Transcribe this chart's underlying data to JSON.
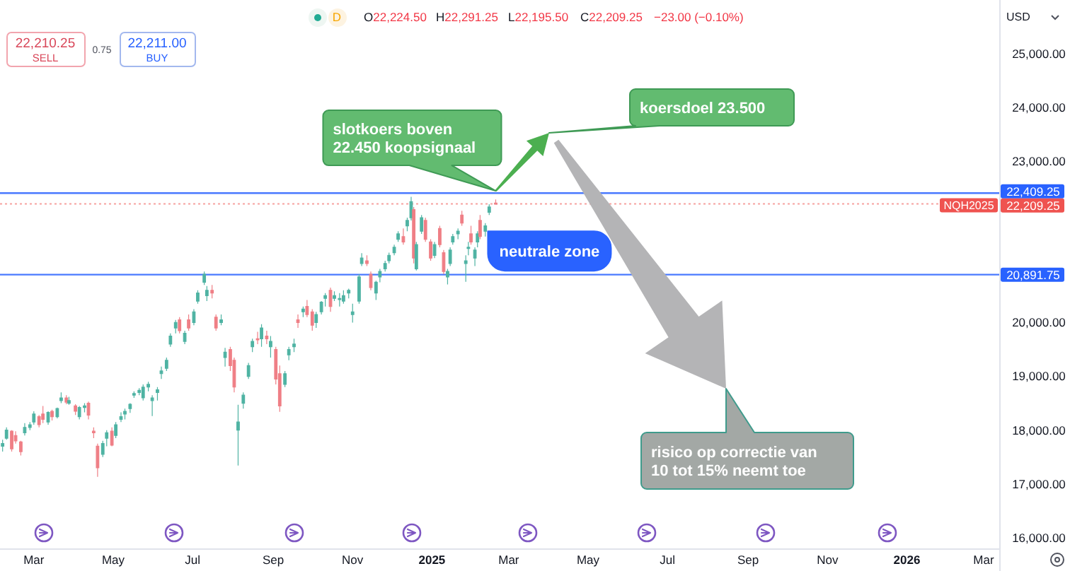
{
  "chart_data": {
    "type": "candlestick",
    "x": [
      "2024-02-06",
      "2024-02-09",
      "2024-02-13",
      "2024-02-16",
      "2024-02-20",
      "2024-02-23",
      "2024-02-27",
      "2024-03-01",
      "2024-03-05",
      "2024-03-08",
      "2024-03-12",
      "2024-03-15",
      "2024-03-19",
      "2024-03-22",
      "2024-03-26",
      "2024-03-28",
      "2024-04-02",
      "2024-04-05",
      "2024-04-09",
      "2024-04-12",
      "2024-04-16",
      "2024-04-19",
      "2024-04-23",
      "2024-04-26",
      "2024-04-30",
      "2024-05-03",
      "2024-05-07",
      "2024-05-10",
      "2024-05-14",
      "2024-05-17",
      "2024-05-21",
      "2024-05-24",
      "2024-05-28",
      "2024-05-31",
      "2024-06-04",
      "2024-06-07",
      "2024-06-11",
      "2024-06-14",
      "2024-06-18",
      "2024-06-21",
      "2024-06-25",
      "2024-06-28",
      "2024-07-02",
      "2024-07-05",
      "2024-07-10",
      "2024-07-12",
      "2024-07-16",
      "2024-07-19",
      "2024-07-23",
      "2024-07-26",
      "2024-07-30",
      "2024-08-02",
      "2024-08-05",
      "2024-08-09",
      "2024-08-13",
      "2024-08-16",
      "2024-08-20",
      "2024-08-23",
      "2024-08-27",
      "2024-08-30",
      "2024-09-03",
      "2024-09-06",
      "2024-09-10",
      "2024-09-13",
      "2024-09-17",
      "2024-09-20",
      "2024-09-24",
      "2024-09-27",
      "2024-10-01",
      "2024-10-04",
      "2024-10-08",
      "2024-10-11",
      "2024-10-15",
      "2024-10-18",
      "2024-10-22",
      "2024-10-25",
      "2024-10-29",
      "2024-11-01",
      "2024-11-06",
      "2024-11-08",
      "2024-11-12",
      "2024-11-15",
      "2024-11-19",
      "2024-11-22",
      "2024-11-26",
      "2024-11-29",
      "2024-12-03",
      "2024-12-06",
      "2024-12-10",
      "2024-12-13",
      "2024-12-16",
      "2024-12-18",
      "2024-12-20",
      "2024-12-24",
      "2024-12-27",
      "2024-12-31",
      "2025-01-03",
      "2025-01-07",
      "2025-01-10",
      "2025-01-13",
      "2025-01-15",
      "2025-01-17",
      "2025-01-21",
      "2025-01-24",
      "2025-01-27",
      "2025-01-29",
      "2025-01-31",
      "2025-02-03",
      "2025-02-05",
      "2025-02-07",
      "2025-02-11",
      "2025-02-14",
      "2025-02-19"
    ],
    "ohlc": [
      [
        17700,
        17820,
        17600,
        17750
      ],
      [
        17850,
        18050,
        17820,
        18000
      ],
      [
        17980,
        18000,
        17600,
        17650
      ],
      [
        17900,
        17980,
        17750,
        17800
      ],
      [
        17780,
        17800,
        17530,
        17600
      ],
      [
        17950,
        18130,
        17900,
        18050
      ],
      [
        18050,
        18150,
        18000,
        18100
      ],
      [
        18150,
        18350,
        18100,
        18300
      ],
      [
        18250,
        18280,
        18050,
        18100
      ],
      [
        18300,
        18450,
        18130,
        18200
      ],
      [
        18150,
        18350,
        18100,
        18330
      ],
      [
        18350,
        18380,
        18180,
        18250
      ],
      [
        18250,
        18420,
        18220,
        18400
      ],
      [
        18550,
        18700,
        18500,
        18600
      ],
      [
        18600,
        18650,
        18480,
        18520
      ],
      [
        18500,
        18620,
        18470,
        18550
      ],
      [
        18450,
        18480,
        18280,
        18350
      ],
      [
        18250,
        18450,
        18200,
        18420
      ],
      [
        18420,
        18500,
        18330,
        18450
      ],
      [
        18500,
        18530,
        18200,
        18280
      ],
      [
        17980,
        18050,
        17850,
        17950
      ],
      [
        17700,
        17750,
        17130,
        17300
      ],
      [
        17550,
        17800,
        17500,
        17750
      ],
      [
        17850,
        18000,
        17700,
        17950
      ],
      [
        17980,
        18050,
        17700,
        17720
      ],
      [
        17900,
        18150,
        17850,
        18100
      ],
      [
        18200,
        18330,
        18150,
        18250
      ],
      [
        18300,
        18400,
        18200,
        18350
      ],
      [
        18400,
        18500,
        18320,
        18480
      ],
      [
        18650,
        18720,
        18600,
        18680
      ],
      [
        18700,
        18780,
        18650,
        18740
      ],
      [
        18600,
        18850,
        18550,
        18800
      ],
      [
        18800,
        18900,
        18720,
        18850
      ],
      [
        18550,
        18650,
        18260,
        18600
      ],
      [
        18700,
        18800,
        18550,
        18750
      ],
      [
        19050,
        19180,
        18950,
        19100
      ],
      [
        19150,
        19350,
        19100,
        19300
      ],
      [
        19600,
        19800,
        19550,
        19750
      ],
      [
        19900,
        20050,
        19800,
        20000
      ],
      [
        20050,
        20100,
        19800,
        19850
      ],
      [
        19650,
        19850,
        19600,
        19800
      ],
      [
        20050,
        20150,
        19850,
        19900
      ],
      [
        20000,
        20250,
        19950,
        20200
      ],
      [
        20400,
        20600,
        20350,
        20550
      ],
      [
        20750,
        20950,
        20700,
        20900
      ],
      [
        20500,
        20680,
        20400,
        20600
      ],
      [
        20600,
        20700,
        20450,
        20550
      ],
      [
        20100,
        20150,
        19850,
        19900
      ],
      [
        20000,
        20150,
        19950,
        20050
      ],
      [
        19350,
        19530,
        19180,
        19450
      ],
      [
        19500,
        19550,
        19100,
        19200
      ],
      [
        19300,
        19350,
        18700,
        18800
      ],
      [
        18000,
        18470,
        17340,
        18150
      ],
      [
        18500,
        18700,
        18400,
        18650
      ],
      [
        19000,
        19250,
        18950,
        19200
      ],
      [
        19550,
        19700,
        19450,
        19650
      ],
      [
        19700,
        19830,
        19600,
        19680
      ],
      [
        19700,
        19970,
        19550,
        19900
      ],
      [
        19750,
        19850,
        19600,
        19700
      ],
      [
        19550,
        19750,
        19350,
        19650
      ],
      [
        19500,
        19550,
        18850,
        18950
      ],
      [
        19050,
        19200,
        18340,
        18450
      ],
      [
        18850,
        19100,
        18800,
        19050
      ],
      [
        19400,
        19550,
        19300,
        19500
      ],
      [
        19550,
        19700,
        19450,
        19600
      ],
      [
        20050,
        20150,
        19900,
        20000
      ],
      [
        20200,
        20300,
        20100,
        20250
      ],
      [
        20300,
        20420,
        20100,
        20150
      ],
      [
        20200,
        20250,
        19850,
        19950
      ],
      [
        20000,
        20200,
        19900,
        20150
      ],
      [
        20200,
        20400,
        20150,
        20380
      ],
      [
        20450,
        20550,
        20300,
        20500
      ],
      [
        20600,
        20650,
        20200,
        20300
      ],
      [
        20450,
        20580,
        20400,
        20500
      ],
      [
        20450,
        20550,
        20300,
        20450
      ],
      [
        20400,
        20600,
        20350,
        20500
      ],
      [
        20550,
        20630,
        20450,
        20600
      ],
      [
        20150,
        20350,
        20000,
        20200
      ],
      [
        20400,
        20900,
        20350,
        20850
      ],
      [
        21100,
        21290,
        21050,
        21200
      ],
      [
        21150,
        21250,
        21050,
        21100
      ],
      [
        20900,
        20950,
        20600,
        20650
      ],
      [
        20550,
        20780,
        20420,
        20750
      ],
      [
        20850,
        21000,
        20750,
        20950
      ],
      [
        21000,
        21150,
        20950,
        21100
      ],
      [
        21150,
        21300,
        21100,
        21250
      ],
      [
        21300,
        21450,
        21250,
        21400
      ],
      [
        21550,
        21700,
        21500,
        21650
      ],
      [
        21600,
        21750,
        21450,
        21500
      ],
      [
        21800,
        21950,
        21700,
        21900
      ],
      [
        21950,
        22340,
        21900,
        22250
      ],
      [
        22100,
        22150,
        21100,
        21200
      ],
      [
        21000,
        21500,
        20970,
        21450
      ],
      [
        21700,
        22000,
        21650,
        21950
      ],
      [
        21900,
        21950,
        21500,
        21550
      ],
      [
        21500,
        21550,
        21150,
        21200
      ],
      [
        21250,
        21500,
        21200,
        21450
      ],
      [
        21750,
        21800,
        21400,
        21450
      ],
      [
        21300,
        21350,
        20900,
        20950
      ],
      [
        20850,
        21000,
        20710,
        20950
      ],
      [
        21100,
        21400,
        21050,
        21350
      ],
      [
        21500,
        21650,
        21450,
        21600
      ],
      [
        21650,
        21750,
        21550,
        21700
      ],
      [
        22000,
        22080,
        21800,
        21850
      ],
      [
        21100,
        21250,
        20760,
        21150
      ],
      [
        21400,
        21500,
        21250,
        21400
      ],
      [
        21650,
        21800,
        21450,
        21500
      ],
      [
        21200,
        21400,
        21050,
        21350
      ],
      [
        21500,
        21700,
        21400,
        21650
      ],
      [
        21900,
        22000,
        21550,
        21600
      ],
      [
        21700,
        21850,
        21600,
        21800
      ],
      [
        22050,
        22200,
        22000,
        22150
      ],
      [
        22224.5,
        22291.25,
        22195.5,
        22209.25
      ]
    ],
    "colors": [
      "#4fb3a3",
      "#4fb3a3",
      "#ef7f86",
      "#ef7f86",
      "#ef7f86",
      "#4fb3a3",
      "#4fb3a3",
      "#4fb3a3",
      "#ef7f86",
      "#ef7f86",
      "#4fb3a3",
      "#ef7f86",
      "#4fb3a3",
      "#4fb3a3",
      "#ef7f86",
      "#4fb3a3",
      "#ef7f86",
      "#4fb3a3",
      "#4fb3a3",
      "#ef7f86",
      "#ef7f86",
      "#ef7f86",
      "#4fb3a3",
      "#4fb3a3",
      "#ef7f86",
      "#4fb3a3",
      "#4fb3a3",
      "#4fb3a3",
      "#4fb3a3",
      "#4fb3a3",
      "#4fb3a3",
      "#4fb3a3",
      "#4fb3a3",
      "#4fb3a3",
      "#4fb3a3",
      "#4fb3a3",
      "#4fb3a3",
      "#4fb3a3",
      "#4fb3a3",
      "#ef7f86",
      "#4fb3a3",
      "#ef7f86",
      "#4fb3a3",
      "#4fb3a3",
      "#4fb3a3",
      "#4fb3a3",
      "#ef7f86",
      "#ef7f86",
      "#4fb3a3",
      "#4fb3a3",
      "#ef7f86",
      "#ef7f86",
      "#4fb3a3",
      "#4fb3a3",
      "#4fb3a3",
      "#4fb3a3",
      "#ef7f86",
      "#4fb3a3",
      "#ef7f86",
      "#4fb3a3",
      "#ef7f86",
      "#ef7f86",
      "#4fb3a3",
      "#4fb3a3",
      "#4fb3a3",
      "#ef7f86",
      "#4fb3a3",
      "#ef7f86",
      "#ef7f86",
      "#4fb3a3",
      "#4fb3a3",
      "#4fb3a3",
      "#ef7f86",
      "#4fb3a3",
      "#4fb3a3",
      "#4fb3a3",
      "#4fb3a3",
      "#4fb3a3",
      "#4fb3a3",
      "#4fb3a3",
      "#ef7f86",
      "#ef7f86",
      "#4fb3a3",
      "#4fb3a3",
      "#4fb3a3",
      "#4fb3a3",
      "#4fb3a3",
      "#4fb3a3",
      "#ef7f86",
      "#4fb3a3",
      "#4fb3a3",
      "#ef7f86",
      "#4fb3a3",
      "#4fb3a3",
      "#ef7f86",
      "#ef7f86",
      "#4fb3a3",
      "#ef7f86",
      "#ef7f86",
      "#4fb3a3",
      "#4fb3a3",
      "#4fb3a3",
      "#4fb3a3",
      "#ef7f86",
      "#4fb3a3",
      "#4fb3a3",
      "#ef7f86",
      "#4fb3a3",
      "#4fb3a3",
      "#ef7f86",
      "#4fb3a3",
      "#4fb3a3",
      "#ef7f86"
    ],
    "xlim": [
      "2024-02-04",
      "2026-03-13"
    ],
    "xticks": [
      {
        "value": "2024-03",
        "label": "Mar"
      },
      {
        "value": "2024-05",
        "label": "May"
      },
      {
        "value": "2024-07",
        "label": "Jul"
      },
      {
        "value": "2024-09",
        "label": "Sep"
      },
      {
        "value": "2024-11",
        "label": "Nov"
      },
      {
        "value": "2025",
        "label": "2025"
      },
      {
        "value": "2025-03",
        "label": "Mar"
      },
      {
        "value": "2025-05",
        "label": "May"
      },
      {
        "value": "2025-07",
        "label": "Jul"
      },
      {
        "value": "2025-09",
        "label": "Sep"
      },
      {
        "value": "2025-11",
        "label": "Nov"
      },
      {
        "value": "2026",
        "label": "2026"
      },
      {
        "value": "2026-03",
        "label": "Mar"
      }
    ],
    "ylim": [
      15800,
      26000
    ],
    "yticks": [
      {
        "value": 16000,
        "label": "16,000.00"
      },
      {
        "value": 17000,
        "label": "17,000.00"
      },
      {
        "value": 18000,
        "label": "18,000.00"
      },
      {
        "value": 19000,
        "label": "19,000.00"
      },
      {
        "value": 20000,
        "label": "20,000.00"
      },
      {
        "value": 23000,
        "label": "23,000.00"
      },
      {
        "value": 24000,
        "label": "24,000.00"
      },
      {
        "value": 25000,
        "label": "25,000.00"
      }
    ],
    "ref_lines": [
      {
        "axis": "y",
        "value": 22409.25,
        "label": "22,409.25",
        "color": "#2962ff"
      },
      {
        "axis": "y",
        "value": 20891.75,
        "label": "20,891.75",
        "color": "#2962ff"
      },
      {
        "axis": "y",
        "value": 22209.25,
        "label": "22,209.25",
        "color": "#ef5350",
        "line_style": "dotted"
      }
    ],
    "annotations": [
      "O22,224.50",
      "H22,291.25",
      "L22,195.50",
      "C22,209.25",
      "−23.00 (−0.10%)",
      "D",
      "22,210.25",
      "SELL",
      "0.75",
      "22,211.00",
      "BUY",
      "USD",
      {
        "text": "slotkoers boven 22.450 koopsignaal",
        "x": "2025-02-19",
        "y": 22450
      },
      "koersdoel 23.500",
      {
        "text": "neutrale zone",
        "x": "2025-02-13",
        "y": 21700
      },
      "risico op correctie van 10 tot 15% neemt toe",
      {
        "text": "NQH2025",
        "y": 22209.25
      }
    ]
  }
}
